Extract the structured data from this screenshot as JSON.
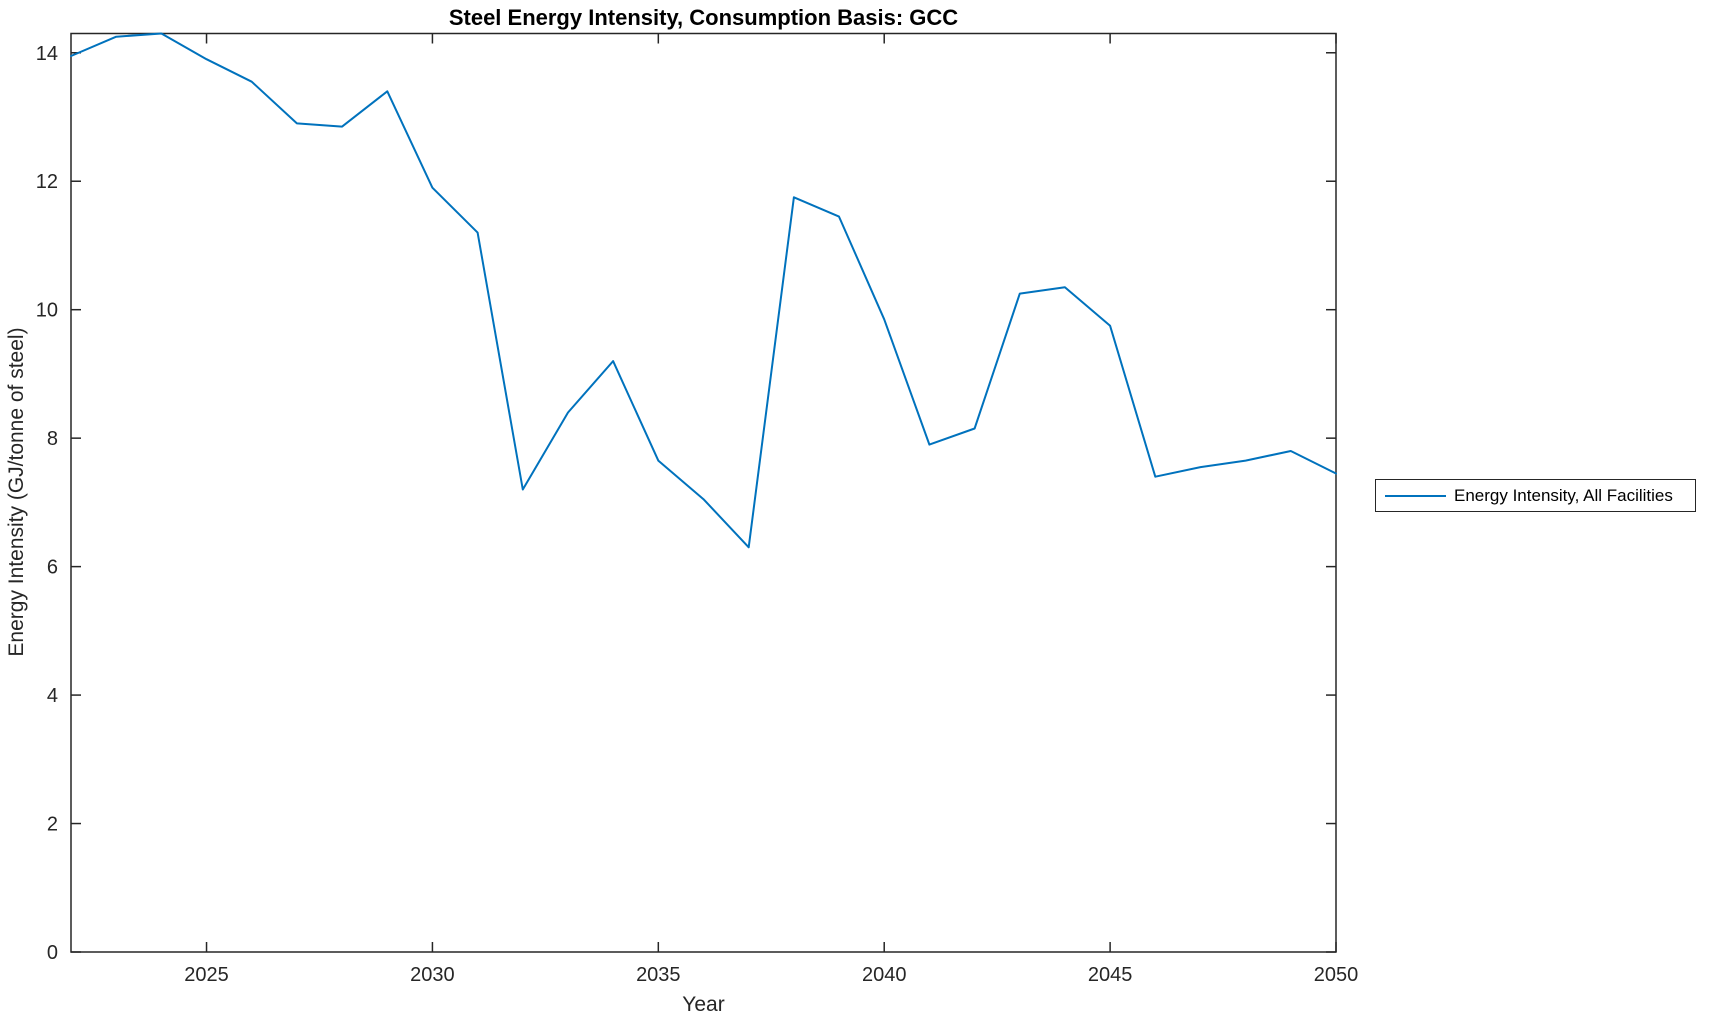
{
  "title": "Steel Energy Intensity, Consumption Basis: GCC",
  "colors": {
    "line": "#0072BD",
    "axis": "#262626",
    "title_text": "#000000",
    "background": "#ffffff"
  },
  "chart_data": {
    "type": "line",
    "title": "Steel Energy Intensity, Consumption Basis: GCC",
    "xlabel": "Year",
    "ylabel": "Energy Intensity (GJ/tonne of steel)",
    "xlim": [
      2022,
      2050
    ],
    "ylim": [
      0,
      14.3
    ],
    "xticks": [
      2025,
      2030,
      2035,
      2040,
      2045,
      2050
    ],
    "yticks": [
      0,
      2,
      4,
      6,
      8,
      10,
      12,
      14
    ],
    "grid": false,
    "box": true,
    "tick_direction": "in",
    "legend": {
      "position": "right-outside",
      "entries": [
        "Energy Intensity, All Facilities"
      ]
    },
    "series": [
      {
        "name": "Energy Intensity, All Facilities",
        "color": "#0072BD",
        "x": [
          2022,
          2023,
          2024,
          2025,
          2026,
          2027,
          2028,
          2029,
          2030,
          2031,
          2032,
          2033,
          2034,
          2035,
          2036,
          2037,
          2038,
          2039,
          2040,
          2041,
          2042,
          2043,
          2044,
          2045,
          2046,
          2047,
          2048,
          2049,
          2050
        ],
        "y": [
          13.95,
          14.25,
          14.3,
          13.9,
          13.55,
          12.9,
          12.85,
          13.4,
          11.9,
          11.2,
          7.2,
          8.4,
          9.2,
          7.65,
          7.05,
          6.3,
          11.75,
          11.45,
          9.85,
          7.9,
          8.15,
          10.25,
          10.35,
          9.75,
          7.4,
          7.55,
          7.65,
          7.8,
          7.45
        ]
      }
    ]
  }
}
